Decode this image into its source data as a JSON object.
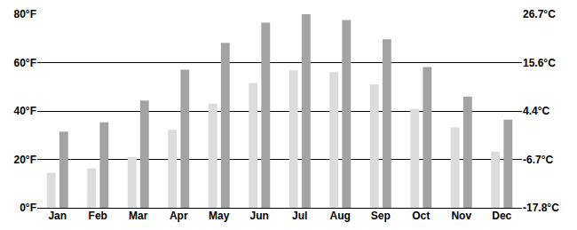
{
  "chart_data": {
    "type": "bar",
    "categories": [
      "Jan",
      "Feb",
      "Mar",
      "Apr",
      "May",
      "Jun",
      "Jul",
      "Aug",
      "Sep",
      "Oct",
      "Nov",
      "Dec"
    ],
    "series": [
      {
        "color": "#dcdcdc",
        "values": [
          14.5,
          16.3,
          21,
          32.2,
          43,
          51.6,
          56.8,
          56.1,
          51,
          40.9,
          33.2,
          23.2
        ]
      },
      {
        "color": "#a3a3a3",
        "values": [
          31.5,
          35.3,
          44.3,
          57.1,
          68.2,
          76.5,
          80,
          77.6,
          69.6,
          58.2,
          46,
          36.4
        ]
      }
    ],
    "ylim": [
      0,
      80
    ],
    "yticks": [
      {
        "value": 0,
        "label": "0°F"
      },
      {
        "value": 20,
        "label": "20°F"
      },
      {
        "value": 40,
        "label": "40°F"
      },
      {
        "value": 60,
        "label": "60°F"
      },
      {
        "value": 80,
        "label": "80°F"
      }
    ],
    "y2lim": [
      -17.8,
      26.7
    ],
    "y2ticks": [
      {
        "value": -17.8,
        "label": "-17.8°C"
      },
      {
        "value": -6.7,
        "label": "-6.7°C"
      },
      {
        "value": 4.4,
        "label": "4.4°C"
      },
      {
        "value": 15.6,
        "label": "15.6°C"
      },
      {
        "value": 26.7,
        "label": "26.7°C"
      }
    ],
    "grid": true
  }
}
